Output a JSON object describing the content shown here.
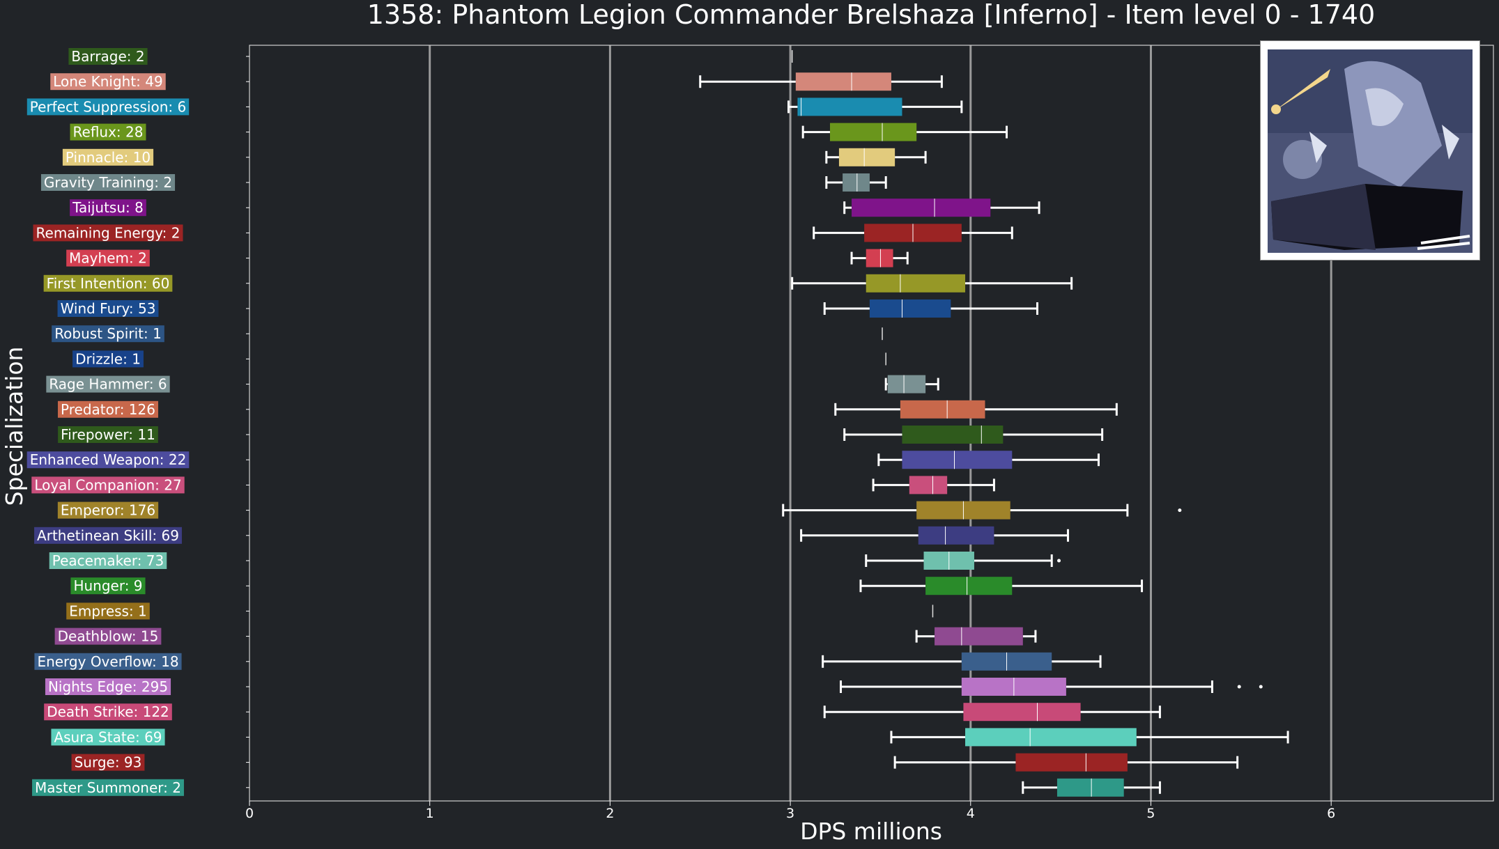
{
  "chart_data": {
    "type": "boxplot",
    "orientation": "horizontal",
    "title": "1358: Phantom Legion Commander Brelshaza [Inferno] - Item level 0 - 1740",
    "xlabel": "DPS millions",
    "ylabel": "Specialization",
    "xlim": [
      0,
      6.9
    ],
    "xticks": [
      0,
      1,
      2,
      3,
      4,
      5,
      6
    ],
    "grid": "vertical lines at integer x",
    "series": [
      {
        "label": "Barrage: 2",
        "color": "#2f5a1c",
        "min": 3.01,
        "q1": 3.01,
        "median": 3.01,
        "q3": 3.01,
        "max": 3.01,
        "outliers": []
      },
      {
        "label": "Lone Knight: 49",
        "color": "#d4877a",
        "min": 2.5,
        "q1": 3.03,
        "median": 3.34,
        "q3": 3.56,
        "max": 3.84,
        "outliers": []
      },
      {
        "label": "Perfect Suppression: 6",
        "color": "#1a8cb0",
        "min": 2.99,
        "q1": 3.04,
        "median": 3.06,
        "q3": 3.62,
        "max": 3.95,
        "outliers": []
      },
      {
        "label": "Reflux: 28",
        "color": "#6a961c",
        "min": 3.07,
        "q1": 3.22,
        "median": 3.51,
        "q3": 3.7,
        "max": 4.2,
        "outliers": []
      },
      {
        "label": "Pinnacle: 10",
        "color": "#e2cb7d",
        "min": 3.2,
        "q1": 3.27,
        "median": 3.41,
        "q3": 3.58,
        "max": 3.75,
        "outliers": []
      },
      {
        "label": "Gravity Training: 2",
        "color": "#6f878a",
        "min": 3.2,
        "q1": 3.29,
        "median": 3.37,
        "q3": 3.44,
        "max": 3.53,
        "outliers": []
      },
      {
        "label": "Taijutsu: 8",
        "color": "#7f148a",
        "min": 3.3,
        "q1": 3.34,
        "median": 3.8,
        "q3": 4.11,
        "max": 4.38,
        "outliers": []
      },
      {
        "label": "Remaining Energy: 2",
        "color": "#9b2424",
        "min": 3.13,
        "q1": 3.41,
        "median": 3.68,
        "q3": 3.95,
        "max": 4.23,
        "outliers": []
      },
      {
        "label": "Mayhem: 2",
        "color": "#d33f51",
        "min": 3.34,
        "q1": 3.42,
        "median": 3.5,
        "q3": 3.57,
        "max": 3.65,
        "outliers": []
      },
      {
        "label": "First Intention: 60",
        "color": "#969827",
        "min": 3.01,
        "q1": 3.42,
        "median": 3.61,
        "q3": 3.97,
        "max": 4.56,
        "outliers": []
      },
      {
        "label": "Wind Fury: 53",
        "color": "#1a4b8e",
        "min": 3.19,
        "q1": 3.44,
        "median": 3.62,
        "q3": 3.89,
        "max": 4.37,
        "outliers": []
      },
      {
        "label": "Robust Spirit: 1",
        "color": "#2d5585",
        "min": 3.51,
        "q1": 3.51,
        "median": 3.51,
        "q3": 3.51,
        "max": 3.51,
        "outliers": []
      },
      {
        "label": "Drizzle: 1",
        "color": "#18428a",
        "min": 3.53,
        "q1": 3.53,
        "median": 3.53,
        "q3": 3.53,
        "max": 3.53,
        "outliers": []
      },
      {
        "label": "Rage Hammer: 6",
        "color": "#7a9193",
        "min": 3.53,
        "q1": 3.54,
        "median": 3.63,
        "q3": 3.75,
        "max": 3.82,
        "outliers": []
      },
      {
        "label": "Predator: 126",
        "color": "#c8684b",
        "min": 3.25,
        "q1": 3.61,
        "median": 3.87,
        "q3": 4.08,
        "max": 4.81,
        "outliers": []
      },
      {
        "label": "Firepower: 11",
        "color": "#2f5a1c",
        "min": 3.3,
        "q1": 3.62,
        "median": 4.06,
        "q3": 4.18,
        "max": 4.73,
        "outliers": []
      },
      {
        "label": "Enhanced Weapon: 22",
        "color": "#4d4c9e",
        "min": 3.49,
        "q1": 3.62,
        "median": 3.91,
        "q3": 4.23,
        "max": 4.71,
        "outliers": []
      },
      {
        "label": "Loyal Companion: 27",
        "color": "#c94f7c",
        "min": 3.46,
        "q1": 3.66,
        "median": 3.79,
        "q3": 3.87,
        "max": 4.13,
        "outliers": []
      },
      {
        "label": "Emperor: 176",
        "color": "#a0832a",
        "min": 2.96,
        "q1": 3.7,
        "median": 3.96,
        "q3": 4.22,
        "max": 4.87,
        "outliers": [
          5.16
        ]
      },
      {
        "label": "Arthetinean Skill: 69",
        "color": "#3d3d82",
        "min": 3.06,
        "q1": 3.71,
        "median": 3.86,
        "q3": 4.13,
        "max": 4.54,
        "outliers": []
      },
      {
        "label": "Peacemaker: 73",
        "color": "#6fc0ad",
        "min": 3.42,
        "q1": 3.74,
        "median": 3.88,
        "q3": 4.02,
        "max": 4.45,
        "outliers": [
          4.49
        ]
      },
      {
        "label": "Hunger: 9",
        "color": "#2a8b2a",
        "min": 3.39,
        "q1": 3.75,
        "median": 3.98,
        "q3": 4.23,
        "max": 4.95,
        "outliers": []
      },
      {
        "label": "Empress: 1",
        "color": "#946f1a",
        "min": 3.79,
        "q1": 3.79,
        "median": 3.79,
        "q3": 3.79,
        "max": 3.79,
        "outliers": []
      },
      {
        "label": "Deathblow: 15",
        "color": "#8f4a91",
        "min": 3.7,
        "q1": 3.8,
        "median": 3.95,
        "q3": 4.29,
        "max": 4.36,
        "outliers": []
      },
      {
        "label": "Energy Overflow: 18",
        "color": "#3a5f8c",
        "min": 3.18,
        "q1": 3.95,
        "median": 4.2,
        "q3": 4.45,
        "max": 4.72,
        "outliers": []
      },
      {
        "label": "Nights Edge: 295",
        "color": "#b873c6",
        "min": 3.28,
        "q1": 3.95,
        "median": 4.24,
        "q3": 4.53,
        "max": 5.34,
        "outliers": [
          5.49,
          5.61
        ]
      },
      {
        "label": "Death Strike: 122",
        "color": "#c84a78",
        "min": 3.19,
        "q1": 3.96,
        "median": 4.37,
        "q3": 4.61,
        "max": 5.05,
        "outliers": []
      },
      {
        "label": "Asura State: 69",
        "color": "#5ccfbc",
        "min": 3.56,
        "q1": 3.97,
        "median": 4.33,
        "q3": 4.92,
        "max": 5.76,
        "outliers": []
      },
      {
        "label": "Surge: 93",
        "color": "#9b2424",
        "min": 3.58,
        "q1": 4.25,
        "median": 4.64,
        "q3": 4.87,
        "max": 5.48,
        "outliers": []
      },
      {
        "label": "Master Summoner: 2",
        "color": "#2e9988",
        "min": 4.29,
        "q1": 4.48,
        "median": 4.67,
        "q3": 4.85,
        "max": 5.05,
        "outliers": []
      }
    ]
  }
}
